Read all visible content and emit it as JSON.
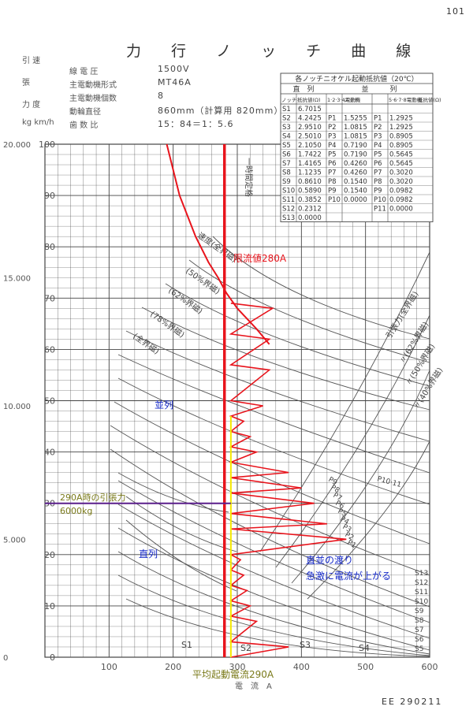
{
  "page_number": "101",
  "title": "力 行 ノ ッ チ 曲 線",
  "side_labels": [
    "引 速",
    "張",
    "力 度",
    "kg km/h"
  ],
  "specs": [
    {
      "key": "線 電 圧",
      "value": "1500V"
    },
    {
      "key": "主電動機形式",
      "value": "MT46A"
    },
    {
      "key": "主電動機個数",
      "value": "8"
    },
    {
      "key": "動輪直径",
      "value": "860mm（計算用 820mm）"
    },
    {
      "key": "歯 数 比",
      "value": "15：84＝1：5.6"
    }
  ],
  "table": {
    "title": "各ノッチニオケル起動抵抗値（20℃）",
    "group_headers": [
      "直　列",
      "並　　　列"
    ],
    "col_headers": [
      "ノッチ",
      "抵抗値(Ω)",
      "1·2·3·4電動機",
      "ノッチ",
      "抵抗値(Ω)",
      "5·6·7·8電動機",
      "ノッチ",
      "抵抗値(Ω)"
    ],
    "rows": [
      [
        "S1",
        "6.7015",
        "",
        "",
        "",
        ""
      ],
      [
        "S2",
        "4.2425",
        "P1",
        "1.5255",
        "P1",
        "1.2925"
      ],
      [
        "S3",
        "2.9510",
        "P2",
        "1.0815",
        "P2",
        "1.2925"
      ],
      [
        "S4",
        "2.5010",
        "P3",
        "1.0815",
        "P3",
        "0.8905"
      ],
      [
        "S5",
        "2.1050",
        "P4",
        "0.7190",
        "P4",
        "0.8905"
      ],
      [
        "S6",
        "1.7422",
        "P5",
        "0.7190",
        "P5",
        "0.5645"
      ],
      [
        "S7",
        "1.4165",
        "P6",
        "0.4260",
        "P6",
        "0.5645"
      ],
      [
        "S8",
        "1.1235",
        "P7",
        "0.4260",
        "P7",
        "0.3020"
      ],
      [
        "S9",
        "0.8610",
        "P8",
        "0.1540",
        "P8",
        "0.3020"
      ],
      [
        "S10",
        "0.5890",
        "P9",
        "0.1540",
        "P9",
        "0.0982"
      ],
      [
        "S11",
        "0.3852",
        "P10",
        "0.0000",
        "P10",
        "0.0982"
      ],
      [
        "S12",
        "0.2312",
        "",
        "",
        "P11",
        "0.0000"
      ],
      [
        "S13",
        "0.0000",
        "",
        "",
        "",
        ""
      ]
    ]
  },
  "annotations": {
    "limit": "限流値280A",
    "parallel": "並列",
    "series": "直列",
    "tractive_line1": "290A時の引張力",
    "tractive_line2": "6000kg",
    "transition_line1": "直並の渡り",
    "transition_line2": "急激に電流が上がる",
    "avg_current": "平均起動電流290A"
  },
  "curve_labels": {
    "speed_full": "速度(全界磁)",
    "f50": "(50%界磁)",
    "f62": "(62%界磁)",
    "f78": "(78%界磁)",
    "full": "(全界磁)",
    "tractive": "引張力(全界磁)",
    "t62": "〃(62%界磁)",
    "t50": "〃(50%界磁)",
    "t40": "〃(40%界磁)",
    "one_hour": "一時間定格",
    "p10_11": "P10·11",
    "p_notches": [
      "P1",
      "P2",
      "P3",
      "P4",
      "P5",
      "P6",
      "P7",
      "P8",
      "P9"
    ],
    "s_bottom": [
      "S1",
      "S2",
      "S3",
      "S4"
    ],
    "s_right": [
      "S13",
      "S12",
      "S11",
      "S10",
      "S9",
      "S8",
      "S7",
      "S6",
      "S5"
    ]
  },
  "axis_label": "電　流　A",
  "ref_code": "EE 290211",
  "colors": {
    "red": "#e8141c",
    "yellow": "#f5e800",
    "purple": "#5a1e8c",
    "blue": "#1428c8",
    "olive": "#7a7a1a",
    "grid": "#444"
  },
  "chart_data": {
    "type": "line",
    "xlabel": "電流 A",
    "ylabel": "速度 km/h",
    "x_ticks": [
      100,
      200,
      300,
      400,
      500,
      600
    ],
    "y_ticks": [
      0,
      10,
      20,
      30,
      40,
      50,
      60,
      70,
      80,
      90,
      100
    ],
    "y2_ticks": [
      {
        "label": "0",
        "at_speed": 0
      },
      {
        "label": "5.000",
        "at_speed": 23
      },
      {
        "label": "10.000",
        "at_speed": 49
      },
      {
        "label": "15.000",
        "at_speed": 74
      },
      {
        "label": "20.000",
        "at_speed": 100
      }
    ],
    "xlim": [
      0,
      600
    ],
    "ylim": [
      0,
      100
    ],
    "grid": true,
    "reference_lines": [
      {
        "name": "限流値280A",
        "axis": "x",
        "value": 280
      },
      {
        "name": "平均起動電流290A",
        "axis": "x",
        "value": 290
      },
      {
        "name": "290A時の引張力 6000kg",
        "axis": "y",
        "value": 30
      }
    ],
    "speed_curve_full_field": [
      [
        190,
        100
      ],
      [
        210,
        90
      ],
      [
        235,
        82
      ],
      [
        255,
        77
      ],
      [
        270,
        74
      ],
      [
        283,
        71
      ],
      [
        300,
        68
      ],
      [
        330,
        64
      ],
      [
        350,
        61
      ]
    ],
    "notch_sawtooth": [
      [
        290,
        0
      ],
      [
        380,
        2
      ],
      [
        290,
        3
      ],
      [
        330,
        7
      ],
      [
        290,
        8
      ],
      [
        320,
        10
      ],
      [
        290,
        11
      ],
      [
        315,
        13
      ],
      [
        290,
        14
      ],
      [
        310,
        16
      ],
      [
        290,
        17
      ],
      [
        305,
        19
      ],
      [
        290,
        20
      ],
      [
        470,
        23
      ],
      [
        290,
        25
      ],
      [
        440,
        26
      ],
      [
        290,
        28
      ],
      [
        420,
        30
      ],
      [
        290,
        32
      ],
      [
        400,
        33
      ],
      [
        290,
        35
      ],
      [
        380,
        36
      ],
      [
        290,
        38
      ],
      [
        330,
        40
      ],
      [
        290,
        41
      ],
      [
        320,
        43
      ],
      [
        290,
        44
      ],
      [
        310,
        46
      ],
      [
        290,
        47
      ],
      [
        340,
        49
      ],
      [
        290,
        50
      ],
      [
        350,
        56
      ],
      [
        290,
        57
      ],
      [
        350,
        62
      ],
      [
        290,
        63
      ],
      [
        355,
        68
      ],
      [
        290,
        69
      ]
    ]
  }
}
